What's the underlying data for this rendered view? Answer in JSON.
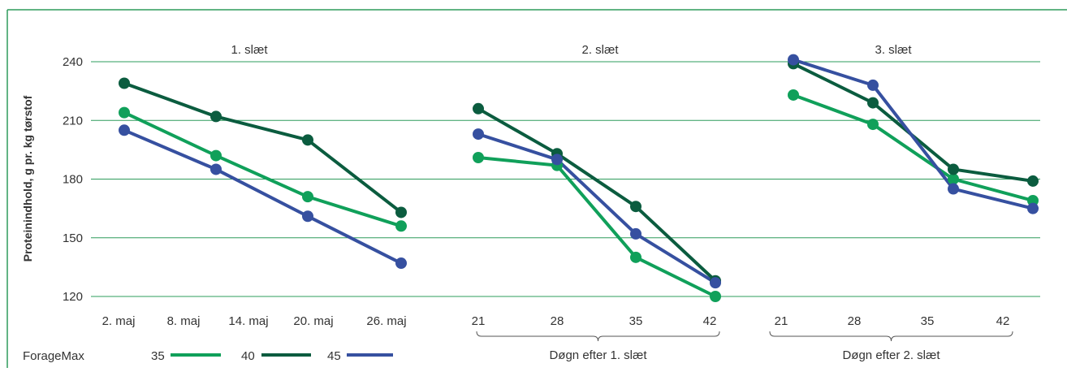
{
  "chart_data": {
    "type": "line",
    "title": "",
    "ylabel": "Proteinindhold, g pr. kg tørstof",
    "ylim": [
      120,
      240
    ],
    "yticks": [
      120,
      150,
      180,
      210,
      240
    ],
    "grid": true,
    "colors": {
      "35": "#10a05a",
      "40": "#0b5c3f",
      "45": "#3650a0",
      "grid": "#2e9c5c",
      "frame": "#2e9c5c"
    },
    "legend": {
      "label": "ForageMax",
      "entries": [
        "35",
        "40",
        "45"
      ],
      "placement": "bottom-left"
    },
    "panels": [
      {
        "title": "1. slæt",
        "categories": [
          "2. maj",
          "8. maj",
          "14. maj",
          "20. maj",
          "26. maj"
        ],
        "group_label": "",
        "series": [
          {
            "name": "35",
            "values": [
              214,
              192,
              171,
              156
            ],
            "x_index": [
              0,
              1,
              2,
              3
            ]
          },
          {
            "name": "40",
            "values": [
              229,
              212,
              200,
              163
            ],
            "x_index": [
              0,
              1,
              2,
              3
            ]
          },
          {
            "name": "45",
            "values": [
              205,
              185,
              161,
              137
            ],
            "x_index": [
              0,
              1,
              2,
              3
            ]
          }
        ]
      },
      {
        "title": "2. slæt",
        "categories": [
          "21",
          "28",
          "35",
          "42"
        ],
        "group_label": "Døgn efter 1. slæt",
        "series": [
          {
            "name": "35",
            "values": [
              191,
              187,
              140,
              120
            ],
            "x_index": [
              0,
              1,
              2,
              3
            ]
          },
          {
            "name": "40",
            "values": [
              216,
              193,
              166,
              128
            ],
            "x_index": [
              0,
              1,
              2,
              3
            ]
          },
          {
            "name": "45",
            "values": [
              203,
              190,
              152,
              127
            ],
            "x_index": [
              0,
              1,
              2,
              3
            ]
          }
        ]
      },
      {
        "title": "3. slæt",
        "categories": [
          "21",
          "28",
          "35",
          "42"
        ],
        "group_label": "Døgn efter 2. slæt",
        "series": [
          {
            "name": "35",
            "values": [
              223,
              208,
              180,
              169
            ],
            "x_index": [
              0,
              1,
              2,
              3
            ]
          },
          {
            "name": "40",
            "values": [
              239,
              219,
              185,
              179
            ],
            "x_index": [
              0,
              1,
              2,
              3
            ]
          },
          {
            "name": "45",
            "values": [
              241,
              228,
              175,
              165
            ],
            "x_index": [
              0,
              1,
              2,
              3
            ]
          }
        ]
      }
    ]
  }
}
